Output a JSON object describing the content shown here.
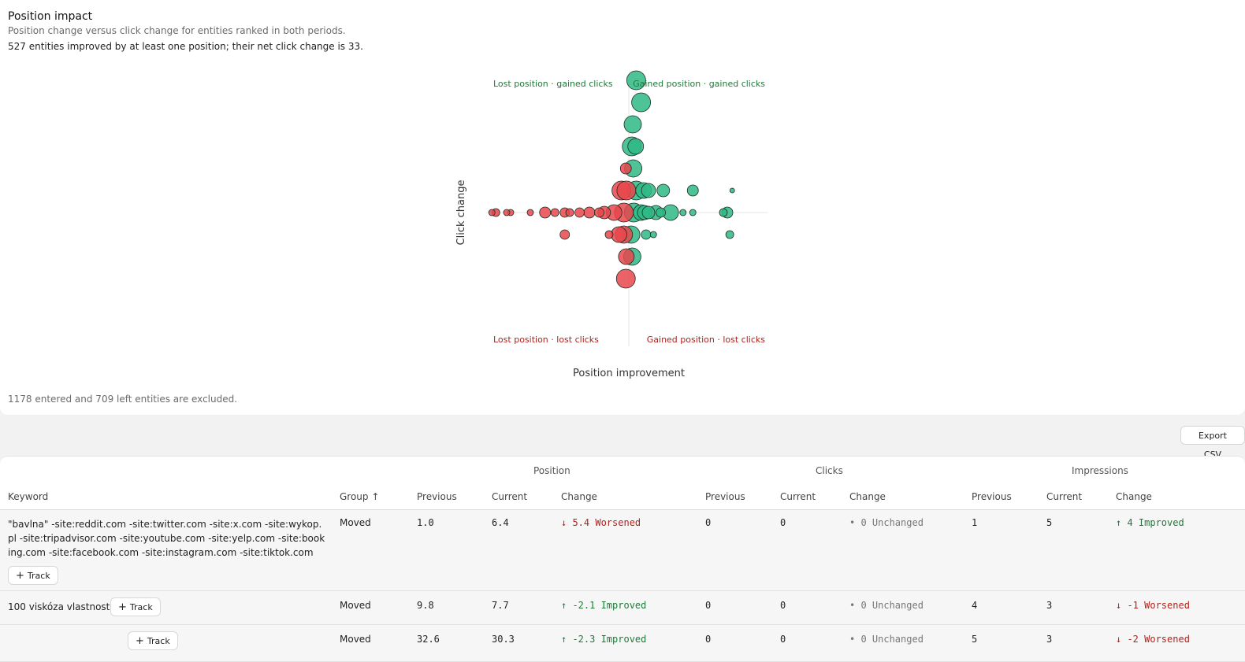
{
  "panel": {
    "title": "Position impact",
    "subtitle": "Position change versus click change for entities ranked in both periods.",
    "summary": "527 entities improved by at least one position; their net click change is 33.",
    "footnote": "1178 entered and 709 left entities are excluded."
  },
  "chart_data": {
    "type": "scatter",
    "xlabel": "Position improvement",
    "ylabel": "Click change",
    "quadrant_labels": {
      "top_left": "Lost position · gained clicks",
      "top_right": "Gained position · gained clicks",
      "bottom_left": "Lost position · lost clicks",
      "bottom_right": "Gained position · lost clicks"
    },
    "colors": {
      "improved": "#2fb886",
      "worsened": "#e8474c"
    },
    "points": [
      {
        "x": 1.5,
        "y": 6,
        "r": 12
      },
      {
        "x": 2.5,
        "y": 5,
        "r": 12
      },
      {
        "x": 0.8,
        "y": 4,
        "r": 11
      },
      {
        "x": 0.6,
        "y": 3,
        "r": 12
      },
      {
        "x": 1.4,
        "y": 3,
        "r": 10
      },
      {
        "x": 0.9,
        "y": 2,
        "r": 11
      },
      {
        "x": -0.6,
        "y": 2,
        "r": 7
      },
      {
        "x": 7,
        "y": 1,
        "r": 8
      },
      {
        "x": 13,
        "y": 1,
        "r": 7
      },
      {
        "x": 21,
        "y": 1,
        "r": 3
      },
      {
        "x": 3,
        "y": 1,
        "r": 10
      },
      {
        "x": 1.5,
        "y": 1,
        "r": 12
      },
      {
        "x": -1.5,
        "y": 1,
        "r": 12
      },
      {
        "x": -0.5,
        "y": 1,
        "r": 12
      },
      {
        "x": 4,
        "y": 1,
        "r": 9
      },
      {
        "x": 5.5,
        "y": 0,
        "r": 9
      },
      {
        "x": 8.5,
        "y": 0,
        "r": 10
      },
      {
        "x": 11,
        "y": 0,
        "r": 4
      },
      {
        "x": 13,
        "y": 0,
        "r": 4
      },
      {
        "x": 20,
        "y": 0,
        "r": 7
      },
      {
        "x": 19.2,
        "y": 0,
        "r": 5
      },
      {
        "x": 4,
        "y": 0,
        "r": 8
      },
      {
        "x": 2.5,
        "y": 0,
        "r": 10
      },
      {
        "x": 1,
        "y": 0,
        "r": 12
      },
      {
        "x": 6.5,
        "y": 0,
        "r": 6
      },
      {
        "x": 3.2,
        "y": 0,
        "r": 9
      },
      {
        "x": -1,
        "y": 0,
        "r": 12
      },
      {
        "x": -3,
        "y": 0,
        "r": 10
      },
      {
        "x": -5,
        "y": 0,
        "r": 8
      },
      {
        "x": -6,
        "y": 0,
        "r": 6
      },
      {
        "x": -8,
        "y": 0,
        "r": 7
      },
      {
        "x": -10,
        "y": 0,
        "r": 6
      },
      {
        "x": -12,
        "y": 0,
        "r": 5
      },
      {
        "x": -13,
        "y": 0,
        "r": 6
      },
      {
        "x": -17,
        "y": 0,
        "r": 7
      },
      {
        "x": -20,
        "y": 0,
        "r": 4
      },
      {
        "x": -24,
        "y": 0,
        "r": 4
      },
      {
        "x": -24.8,
        "y": 0,
        "r": 4
      },
      {
        "x": -27,
        "y": 0,
        "r": 5
      },
      {
        "x": -27.8,
        "y": 0,
        "r": 4
      },
      {
        "x": -15,
        "y": 0,
        "r": 5
      },
      {
        "x": -2,
        "y": -1,
        "r": 10
      },
      {
        "x": 0.5,
        "y": -1,
        "r": 11
      },
      {
        "x": -1,
        "y": -1,
        "r": 11
      },
      {
        "x": 3.5,
        "y": -1,
        "r": 6
      },
      {
        "x": 5,
        "y": -1,
        "r": 4
      },
      {
        "x": -4,
        "y": -1,
        "r": 5
      },
      {
        "x": -13,
        "y": -1,
        "r": 6
      },
      {
        "x": 20.5,
        "y": -1,
        "r": 5
      },
      {
        "x": -0.5,
        "y": -2,
        "r": 10
      },
      {
        "x": 0.7,
        "y": -2,
        "r": 11
      },
      {
        "x": -0.6,
        "y": -3,
        "r": 12
      }
    ]
  },
  "toolbar": {
    "export_label": "Export CSV"
  },
  "table": {
    "groups": {
      "position": "Position",
      "clicks": "Clicks",
      "impressions": "Impressions"
    },
    "columns": {
      "keyword": "Keyword",
      "group": "Group ↑",
      "pos_prev": "Previous",
      "pos_cur": "Current",
      "pos_change": "Change",
      "clk_prev": "Previous",
      "clk_cur": "Current",
      "clk_change": "Change",
      "imp_prev": "Previous",
      "imp_cur": "Current",
      "imp_change": "Change"
    },
    "track_label": "Track",
    "rows": [
      {
        "keyword": "\"bavlna\" -site:reddit.com -site:twitter.com -site:x.com -site:wykop.pl -site:tripadvisor.com -site:youtube.com -site:yelp.com -site:booking.com -site:facebook.com -site:instagram.com -site:tiktok.com",
        "group": "Moved",
        "pos_prev": "1.0",
        "pos_cur": "6.4",
        "pos_change": "↓ 5.4 Worsened",
        "clk_prev": "0",
        "clk_cur": "0",
        "clk_change": "• 0 Unchanged",
        "imp_prev": "1",
        "imp_cur": "5",
        "imp_change": "↑ 4 Improved"
      },
      {
        "keyword": "100 viskóza vlastnosti",
        "group": "Moved",
        "pos_prev": "9.8",
        "pos_cur": "7.7",
        "pos_change": "↑ -2.1 Improved",
        "clk_prev": "0",
        "clk_cur": "0",
        "clk_change": "• 0 Unchanged",
        "imp_prev": "4",
        "imp_cur": "3",
        "imp_change": "↓ -1 Worsened"
      },
      {
        "keyword": "",
        "group": "Moved",
        "pos_prev": "32.6",
        "pos_cur": "30.3",
        "pos_change": "↑ -2.3 Improved",
        "clk_prev": "0",
        "clk_cur": "0",
        "clk_change": "• 0 Unchanged",
        "imp_prev": "5",
        "imp_cur": "3",
        "imp_change": "↓ -2 Worsened"
      }
    ]
  }
}
